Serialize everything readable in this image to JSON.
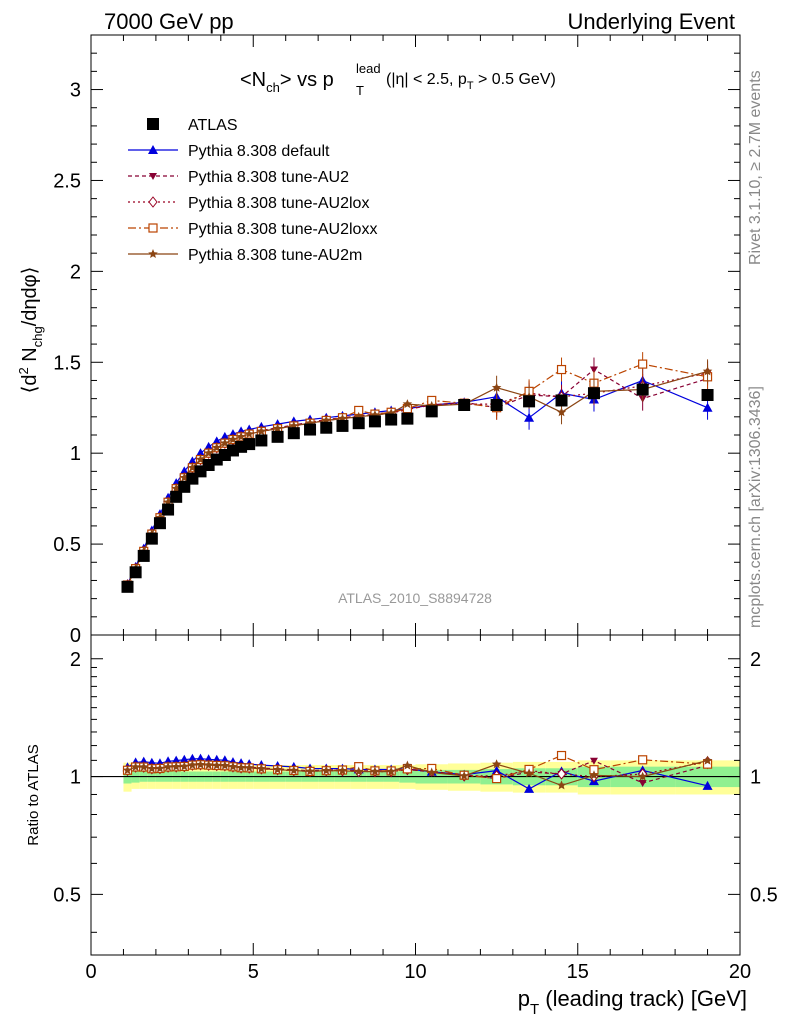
{
  "header": {
    "left": "7000 GeV pp",
    "right": "Underlying Event"
  },
  "side_labels": {
    "rivet": "Rivet 3.1.10, ≥ 2.7M events",
    "mcplots": "mcplots.cern.ch [arXiv:1306.3436]"
  },
  "watermark": "ATLAS_2010_S8894728",
  "colors": {
    "atlas": "#000000",
    "default": "#0000dd",
    "au2": "#880033",
    "au2lox": "#990022",
    "au2loxx": "#bb4400",
    "au2m": "#8b4513",
    "band_inner": "#90f090",
    "band_outer": "#ffff99"
  },
  "chart_data": [
    {
      "type": "scatter",
      "title": {
        "main": "<N",
        "main_sub": "ch",
        "main_mid": "> vs p",
        "main_sup": "lead",
        "main_sub2": "T",
        "cut_text": "(|η| < 2.5, p",
        "cut_sub": "T",
        "cut_end": " > 0.5 GeV)"
      },
      "ylabel": {
        "pre": "⟨d",
        "sup": "2",
        "mid": " N",
        "sub": "chg",
        "post": "/dηdφ⟩"
      },
      "xlabel": {
        "pre": "p",
        "sub": "T",
        "post": " (leading track) [GeV]"
      },
      "xlim": [
        0,
        20
      ],
      "ylim": [
        0,
        3.3
      ],
      "xticks": [
        "0",
        "5",
        "10",
        "15",
        "20"
      ],
      "yticks": [
        "0",
        "0.5",
        "1",
        "1.5",
        "2",
        "2.5",
        "3"
      ],
      "x": [
        1.125,
        1.375,
        1.625,
        1.875,
        2.125,
        2.375,
        2.625,
        2.875,
        3.125,
        3.375,
        3.625,
        3.875,
        4.125,
        4.375,
        4.625,
        4.875,
        5.25,
        5.75,
        6.25,
        6.75,
        7.25,
        7.75,
        8.25,
        8.75,
        9.25,
        9.75,
        10.5,
        11.5,
        12.5,
        13.5,
        14.5,
        15.5,
        17.0,
        19.0
      ],
      "series": [
        {
          "name": "ATLAS",
          "marker": "square",
          "values": [
            0.265,
            0.345,
            0.435,
            0.53,
            0.615,
            0.69,
            0.76,
            0.815,
            0.86,
            0.9,
            0.935,
            0.965,
            0.99,
            1.015,
            1.035,
            1.05,
            1.07,
            1.09,
            1.11,
            1.13,
            1.14,
            1.15,
            1.165,
            1.175,
            1.185,
            1.19,
            1.23,
            1.265,
            1.265,
            1.285,
            1.29,
            1.33,
            1.35,
            1.32
          ]
        },
        {
          "name": "Pythia 8.308 default",
          "marker": "triangle-up",
          "values": [
            0.28,
            0.375,
            0.475,
            0.575,
            0.665,
            0.755,
            0.835,
            0.9,
            0.955,
            1.0,
            1.035,
            1.065,
            1.09,
            1.105,
            1.12,
            1.13,
            1.145,
            1.16,
            1.175,
            1.185,
            1.195,
            1.205,
            1.215,
            1.225,
            1.235,
            1.245,
            1.265,
            1.28,
            1.31,
            1.195,
            1.33,
            1.295,
            1.4,
            1.25
          ]
        },
        {
          "name": "Pythia 8.308 tune-AU2",
          "marker": "triangle-down",
          "values": [
            0.275,
            0.365,
            0.46,
            0.555,
            0.645,
            0.73,
            0.81,
            0.87,
            0.925,
            0.97,
            1.005,
            1.035,
            1.06,
            1.08,
            1.095,
            1.11,
            1.125,
            1.14,
            1.155,
            1.17,
            1.185,
            1.195,
            1.205,
            1.215,
            1.225,
            1.24,
            1.265,
            1.28,
            1.25,
            1.32,
            1.31,
            1.46,
            1.3,
            1.41
          ]
        },
        {
          "name": "Pythia 8.308 tune-AU2lox",
          "marker": "diamond",
          "values": [
            0.275,
            0.365,
            0.46,
            0.555,
            0.645,
            0.73,
            0.805,
            0.865,
            0.92,
            0.965,
            1.0,
            1.03,
            1.055,
            1.075,
            1.09,
            1.105,
            1.12,
            1.135,
            1.15,
            1.165,
            1.18,
            1.19,
            1.2,
            1.21,
            1.22,
            1.24,
            1.27,
            1.27,
            1.27,
            1.33,
            1.31,
            1.33,
            1.37,
            1.44
          ]
        },
        {
          "name": "Pythia 8.308 tune-AU2loxx",
          "marker": "square-open",
          "values": [
            0.275,
            0.365,
            0.46,
            0.555,
            0.645,
            0.73,
            0.805,
            0.865,
            0.92,
            0.965,
            1.0,
            1.03,
            1.055,
            1.075,
            1.09,
            1.105,
            1.12,
            1.135,
            1.15,
            1.165,
            1.18,
            1.195,
            1.235,
            1.215,
            1.225,
            1.245,
            1.29,
            1.275,
            1.25,
            1.34,
            1.46,
            1.385,
            1.49,
            1.42
          ]
        },
        {
          "name": "Pythia 8.308 tune-AU2m",
          "marker": "star",
          "values": [
            0.275,
            0.365,
            0.46,
            0.555,
            0.645,
            0.73,
            0.805,
            0.865,
            0.92,
            0.965,
            1.0,
            1.03,
            1.055,
            1.075,
            1.09,
            1.105,
            1.12,
            1.135,
            1.15,
            1.165,
            1.18,
            1.19,
            1.2,
            1.21,
            1.22,
            1.27,
            1.26,
            1.27,
            1.36,
            1.31,
            1.225,
            1.34,
            1.35,
            1.45
          ]
        }
      ]
    },
    {
      "type": "scatter",
      "title": "",
      "ylabel": "Ratio to ATLAS",
      "xlim": [
        0,
        20
      ],
      "ylim": [
        0.35,
        2.3
      ],
      "yticks": [
        "0.5",
        "1",
        "2"
      ],
      "reference_line": 1.0,
      "uncertainty_bands": {
        "x_edges": [
          1.0,
          1.25,
          1.5,
          1.75,
          2.0,
          2.25,
          2.5,
          2.75,
          3.0,
          3.25,
          3.5,
          3.75,
          4.0,
          4.25,
          4.5,
          4.75,
          5.0,
          5.5,
          6.0,
          6.5,
          7.0,
          7.5,
          8.0,
          8.5,
          9.0,
          9.5,
          10.0,
          11.0,
          12.0,
          13.0,
          14.0,
          15.0,
          16.0,
          18.0,
          20.0
        ],
        "inner_half_width": [
          0.04,
          0.035,
          0.03,
          0.03,
          0.03,
          0.03,
          0.03,
          0.03,
          0.03,
          0.03,
          0.03,
          0.03,
          0.03,
          0.03,
          0.03,
          0.03,
          0.03,
          0.03,
          0.03,
          0.03,
          0.03,
          0.03,
          0.03,
          0.03,
          0.03,
          0.035,
          0.04,
          0.04,
          0.045,
          0.05,
          0.05,
          0.06,
          0.06,
          0.06
        ],
        "outer_half_width": [
          0.085,
          0.07,
          0.07,
          0.07,
          0.07,
          0.07,
          0.07,
          0.07,
          0.07,
          0.07,
          0.07,
          0.07,
          0.07,
          0.07,
          0.07,
          0.07,
          0.07,
          0.07,
          0.07,
          0.07,
          0.07,
          0.07,
          0.07,
          0.07,
          0.07,
          0.07,
          0.075,
          0.08,
          0.085,
          0.09,
          0.09,
          0.1,
          0.1,
          0.1
        ]
      }
    }
  ]
}
